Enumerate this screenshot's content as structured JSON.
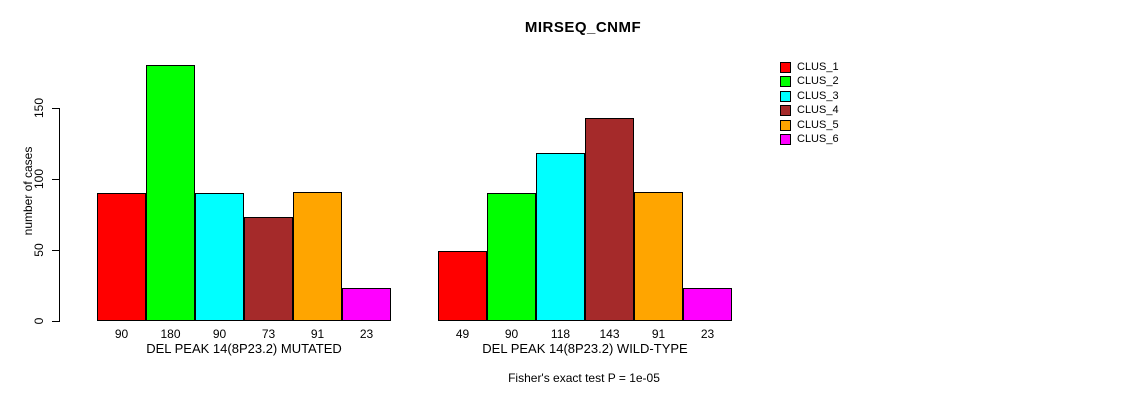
{
  "chart_data": {
    "type": "bar",
    "title": "MIRSEQ_CNMF",
    "ylabel": "number of cases",
    "xlabel": "",
    "yticks": [
      0,
      50,
      100,
      150
    ],
    "ylim": [
      0,
      180
    ],
    "grid": false,
    "legend_position": "right",
    "categories": [
      "CLUS_1",
      "CLUS_2",
      "CLUS_3",
      "CLUS_4",
      "CLUS_5",
      "CLUS_6"
    ],
    "colors": [
      "#FF0000",
      "#00FF00",
      "#00FFFF",
      "#A52A2A",
      "#FFA500",
      "#FF00FF"
    ],
    "legend": [
      {
        "label": "CLUS_1",
        "color": "#FF0000"
      },
      {
        "label": "CLUS_2",
        "color": "#00FF00"
      },
      {
        "label": "CLUS_3",
        "color": "#00FFFF"
      },
      {
        "label": "CLUS_4",
        "color": "#A52A2A"
      },
      {
        "label": "CLUS_5",
        "color": "#FFA500"
      },
      {
        "label": "CLUS_6",
        "color": "#FF00FF"
      }
    ],
    "groups": [
      {
        "xlabel": "DEL PEAK 14(8P23.2) MUTATED",
        "values": [
          90,
          180,
          90,
          73,
          91,
          23
        ]
      },
      {
        "xlabel": "DEL PEAK 14(8P23.2) WILD-TYPE",
        "values": [
          49,
          90,
          118,
          143,
          91,
          23
        ]
      }
    ],
    "annotation": "Fisher's exact test P = 1e-05",
    "axis_color": "#000000",
    "bar_border_color": "#000000"
  }
}
